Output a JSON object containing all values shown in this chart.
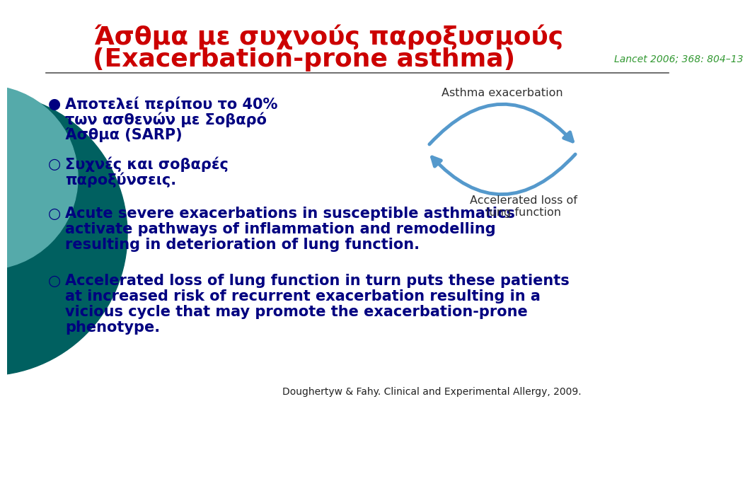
{
  "bg_color": "#ffffff",
  "left_circle1_color": "#006060",
  "left_circle2_color": "#55aaaa",
  "title_line1": "Άσθμα με συχνούς παροξυσμούς",
  "title_line2": "(Exacerbation-prone asthma)",
  "title_color": "#cc0000",
  "title_fontsize": 26,
  "lancet_text": "Lancet 2006; 368: 804–13",
  "lancet_color": "#339933",
  "lancet_fontsize": 10,
  "bullet_color": "#000080",
  "bullet_fontsize": 15,
  "bullet1_line1": "Αποτελεί περίπου το 40%",
  "bullet1_line2": "των ασθενών με Σοβαρό",
  "bullet1_line3": "Άσθμα (SARP)",
  "bullet2_line1": "Συχνές και σοβαρές",
  "bullet2_line2": "παροξύνσεις.",
  "bullet3_line1": "Acute severe exacerbations in susceptible asthmatics",
  "bullet3_line2": "activate pathways of inflammation and remodelling",
  "bullet3_line3": "resulting in deterioration of lung function.",
  "bullet4_line1": "Accelerated loss of lung function in turn puts these patients",
  "bullet4_line2": "at increased risk of recurrent exacerbation resulting in a",
  "bullet4_line3": "vicious cycle that may promote the exacerbation-prone",
  "bullet4_line4": "phenotype.",
  "diagram_label_top": "Asthma exacerbation",
  "diagram_label_bottom1": "Accelerated loss of",
  "diagram_label_bottom2": "lung function",
  "diagram_arrow_color": "#5599cc",
  "citation": "Doughertyw & Fahy. Clinical and Experimental Allergy, 2009.",
  "citation_fontsize": 10,
  "separator_color": "#555555"
}
